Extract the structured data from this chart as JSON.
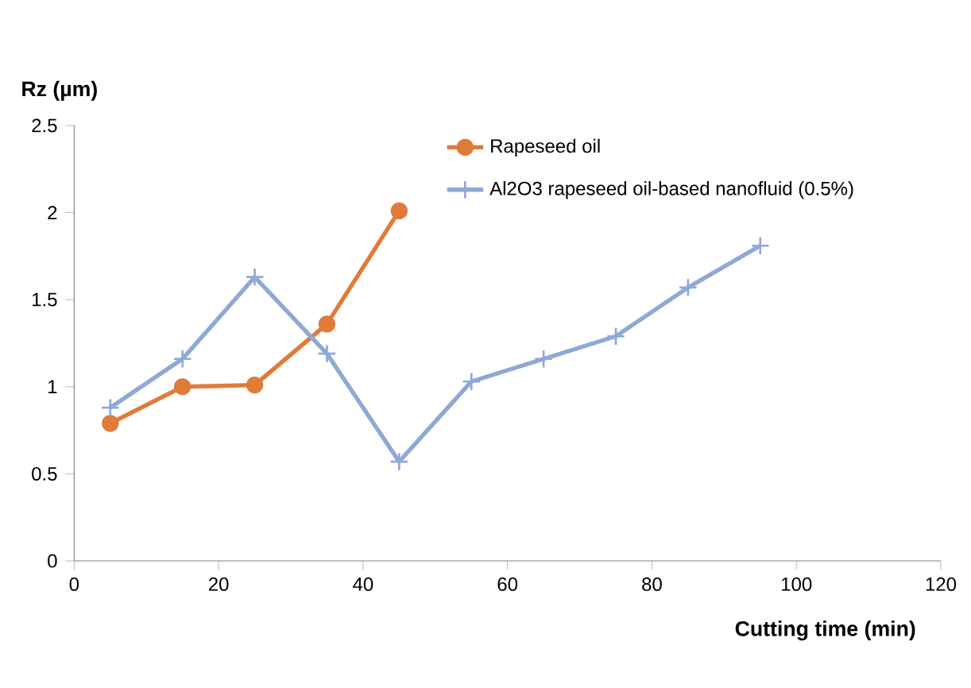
{
  "chart_data": {
    "type": "line",
    "xlabel": "Cutting time (min)",
    "ylabel": "Rz (µm)",
    "series": [
      {
        "name": "Rapeseed oil",
        "color": "#e07b39",
        "marker": "circle",
        "x": [
          5,
          15,
          25,
          35,
          45
        ],
        "values": [
          0.79,
          1.0,
          1.01,
          1.36,
          2.01
        ]
      },
      {
        "name": "Al2O3 rapeseed oil-based nanofluid (0.5%)",
        "color": "#8fa8d6",
        "marker": "cross",
        "x": [
          5,
          15,
          25,
          35,
          45,
          55,
          65,
          75,
          85,
          95
        ],
        "values": [
          0.88,
          1.16,
          1.63,
          1.19,
          0.57,
          1.03,
          1.16,
          1.29,
          1.57,
          1.81
        ]
      }
    ],
    "xlim": [
      0,
      120
    ],
    "xticks": [
      0,
      20,
      40,
      60,
      80,
      100,
      120
    ],
    "ylim": [
      0,
      2.5
    ],
    "yticks": [
      0,
      0.5,
      1,
      1.5,
      2,
      2.5
    ],
    "grid": false,
    "legend": "top",
    "line_style": "solid"
  }
}
